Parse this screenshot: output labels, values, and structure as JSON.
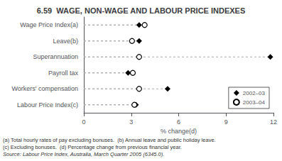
{
  "chart_data": {
    "type": "dot",
    "title": "6.59  WAGE, NON-WAGE AND LABOUR PRICE INDEXES",
    "categories": [
      "Wage Price Index(a)",
      "Leave(b)",
      "Superannuation",
      "Payroll tax",
      "Workers' compensation",
      "Labour Price Index(c)"
    ],
    "series": [
      {
        "name": "2002–03",
        "color": "#000000",
        "marker": "diamond",
        "values": [
          3.5,
          3.5,
          11.8,
          2.8,
          5.3,
          3.3
        ]
      },
      {
        "name": "2003–04",
        "color": "#000000",
        "marker": "open_circle",
        "values": [
          3.85,
          3.05,
          3.5,
          3.1,
          3.5,
          3.2
        ]
      }
    ],
    "xlabel": "% change(d)",
    "xlim": [
      0,
      12
    ],
    "xticks": [
      0,
      3,
      6,
      9,
      12
    ],
    "grid": false,
    "legend": "lower right",
    "line_style": "dashed",
    "annotations": [
      "(a) Total hourly rates of pay excluding bonuses.  (b) Annual leave and public holiday leave.",
      "(c) Excluding bonuses.  (d) Percentage change from previous financial year.",
      "Source: Labour Price Index, Australia, March Quarter 2005 (6345.0)."
    ]
  }
}
